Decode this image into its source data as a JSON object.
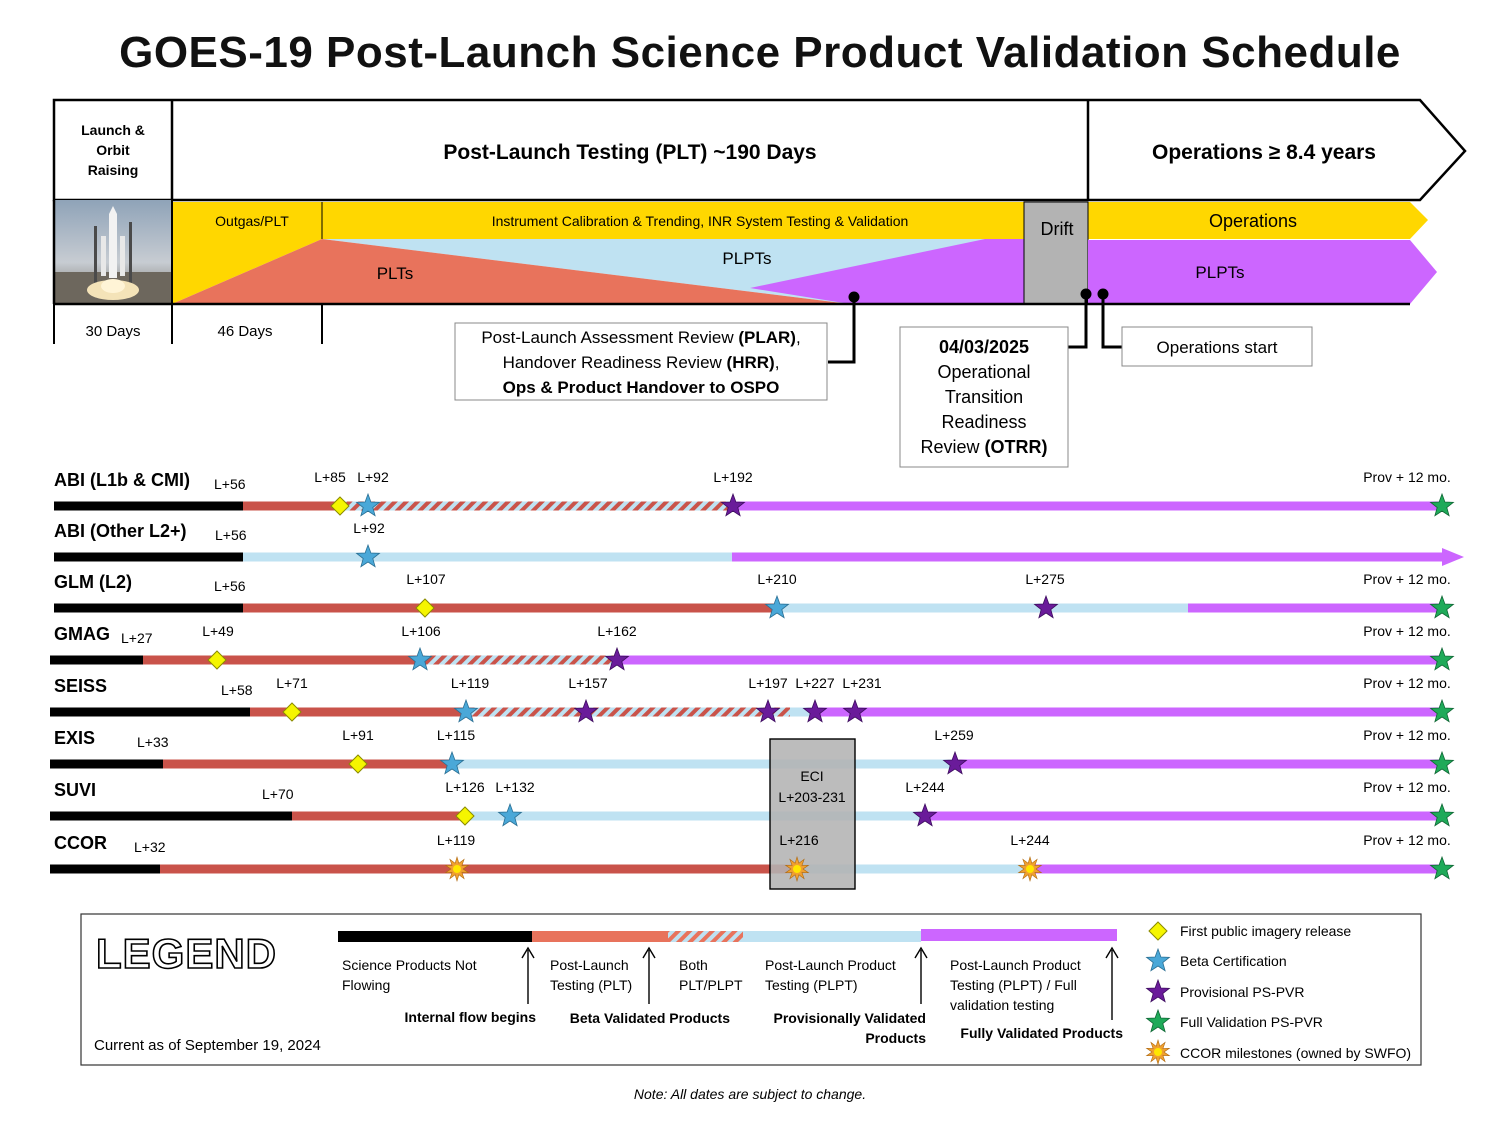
{
  "title": "GOES-19 Post-Launch Science Product Validation Schedule",
  "phases": {
    "launch": "Launch & Orbit Raising",
    "plt": "Post-Launch Testing (PLT) ~190 Days",
    "ops": "Operations ≥ 8.4 years",
    "outgas": "Outgas/PLT",
    "calibration": "Instrument Calibration & Trending, INR System Testing & Validation",
    "drift": "Drift",
    "operations": "Operations",
    "plts": "PLTs",
    "plpts_mid": "PLPTs",
    "plpts_right": "PLPTs",
    "days_30": "30 Days",
    "days_46": "46 Days"
  },
  "callouts": {
    "plar_line1a": "Post-Launch Assessment Review ",
    "plar_line1b": "(PLAR)",
    "plar_line1c": ",",
    "plar_line2a": "Handover Readiness Review ",
    "plar_line2b": "(HRR)",
    "plar_line2c": ",",
    "plar_line3": "Ops & Product Handover to OSPO",
    "otrr_date": "04/03/2025",
    "otrr_line1": "Operational",
    "otrr_line2": "Transition",
    "otrr_line3": "Readiness",
    "otrr_line4a": "Review ",
    "otrr_line4b": "(OTRR)",
    "ops_start": "Operations start"
  },
  "eci": {
    "line1": "ECI",
    "line2": "L+203-231"
  },
  "colors": {
    "black": "#000000",
    "plt": "#c9534a",
    "plt_bar": "#e8735c",
    "plpt": "#bfe2f2",
    "prov": "#cc66ff",
    "gold": "#ffd700",
    "drift": "#b3b3b3",
    "beta_star": "#4aa8d8",
    "prov_star": "#6a1b9a",
    "full_star": "#1faa59",
    "ccor": "#f0a030",
    "first_img": "#f5f500"
  },
  "timeline": {
    "rows": [
      {
        "name": "ABI (L1b & CMI)",
        "start": "L+56",
        "markers": [
          {
            "kind": "diamond",
            "label": "L+85"
          },
          {
            "kind": "beta",
            "label": "L+92"
          },
          {
            "kind": "prov",
            "label": "L+192"
          },
          {
            "kind": "full",
            "label": "Prov + 12 mo."
          }
        ]
      },
      {
        "name": "ABI (Other L2+)",
        "start": "L+56",
        "markers": [
          {
            "kind": "beta",
            "label": "L+92"
          }
        ]
      },
      {
        "name": "GLM (L2)",
        "start": "L+56",
        "markers": [
          {
            "kind": "diamond",
            "label": "L+107"
          },
          {
            "kind": "beta",
            "label": "L+210"
          },
          {
            "kind": "prov",
            "label": "L+275"
          },
          {
            "kind": "full",
            "label": "Prov + 12 mo."
          }
        ]
      },
      {
        "name": "GMAG",
        "start": "L+27",
        "markers": [
          {
            "kind": "diamond",
            "label": "L+49"
          },
          {
            "kind": "beta",
            "label": "L+106"
          },
          {
            "kind": "prov",
            "label": "L+162"
          },
          {
            "kind": "full",
            "label": "Prov + 12 mo."
          }
        ]
      },
      {
        "name": "SEISS",
        "start": "L+58",
        "markers": [
          {
            "kind": "diamond",
            "label": "L+71"
          },
          {
            "kind": "beta",
            "label": "L+119"
          },
          {
            "kind": "prov",
            "label": "L+157"
          },
          {
            "kind": "prov",
            "label": "L+197"
          },
          {
            "kind": "prov",
            "label": "L+227"
          },
          {
            "kind": "prov",
            "label": "L+231"
          },
          {
            "kind": "full",
            "label": "Prov + 12 mo."
          }
        ]
      },
      {
        "name": "EXIS",
        "start": "L+33",
        "markers": [
          {
            "kind": "diamond",
            "label": "L+91"
          },
          {
            "kind": "beta",
            "label": "L+115"
          },
          {
            "kind": "prov",
            "label": "L+259"
          },
          {
            "kind": "full",
            "label": "Prov + 12 mo."
          }
        ]
      },
      {
        "name": "SUVI",
        "start": "L+70",
        "markers": [
          {
            "kind": "diamond",
            "label": "L+126"
          },
          {
            "kind": "beta",
            "label": "L+132"
          },
          {
            "kind": "prov",
            "label": "L+244"
          },
          {
            "kind": "full",
            "label": "Prov + 12 mo."
          }
        ]
      },
      {
        "name": "CCOR",
        "start": "L+32",
        "markers": [
          {
            "kind": "ccor",
            "label": "L+119"
          },
          {
            "kind": "ccor",
            "label": "L+216"
          },
          {
            "kind": "ccor",
            "label": "L+244"
          },
          {
            "kind": "full",
            "label": "Prov + 12 mo."
          }
        ]
      }
    ]
  },
  "legend": {
    "title": "LEGEND",
    "current": "Current as of September 19, 2024",
    "seg_not_flowing_1": "Science Products Not",
    "seg_not_flowing_2": "Flowing",
    "seg_plt_1": "Post-Launch",
    "seg_plt_2": "Testing (PLT)",
    "seg_both_1": "Both",
    "seg_both_2": "PLT/PLPT",
    "seg_plpt_1": "Post-Launch Product",
    "seg_plpt_2": "Testing (PLPT)",
    "seg_full_1": "Post-Launch Product",
    "seg_full_2": "Testing (PLPT) / Full",
    "seg_full_3": "validation testing",
    "internal_flow": "Internal flow begins",
    "beta_validated": "Beta Validated Products",
    "prov_validated_1": "Provisionally Validated",
    "prov_validated_2": "Products",
    "fully_validated": "Fully Validated Products",
    "sym_first": "First public imagery release",
    "sym_beta": "Beta Certification",
    "sym_prov": "Provisional PS-PVR",
    "sym_full": "Full Validation PS-PVR",
    "sym_ccor": "CCOR milestones (owned by SWFO)"
  },
  "note": "Note: All dates are subject to change."
}
